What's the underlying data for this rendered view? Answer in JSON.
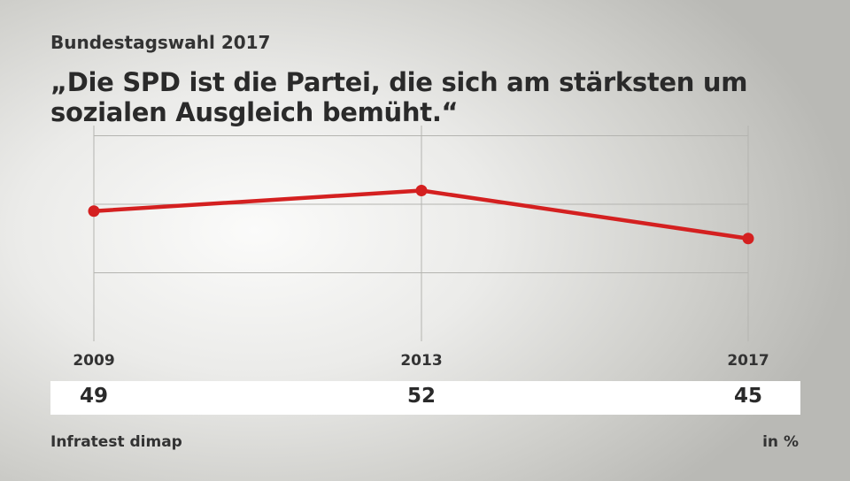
{
  "header": {
    "subtitle": "Bundestagswahl 2017",
    "title": "„Die SPD ist die Partei, die sich am stärksten um sozialen Ausgleich bemüht.“"
  },
  "footer": {
    "source": "Infratest dimap",
    "unit": "in %"
  },
  "colors": {
    "line": "#d42020",
    "grid": "#b4b4b0"
  },
  "chart_data": {
    "type": "line",
    "title": "„Die SPD ist die Partei, die sich am stärksten um sozialen Ausgleich bemüht.“",
    "xlabel": "",
    "ylabel": "in %",
    "categories": [
      "2009",
      "2013",
      "2017"
    ],
    "series": [
      {
        "name": "SPD",
        "values": [
          49,
          52,
          45
        ]
      }
    ],
    "value_labels": [
      "49",
      "52",
      "45"
    ],
    "ylim": [
      30,
      70
    ],
    "grid": true,
    "legend": "none"
  }
}
